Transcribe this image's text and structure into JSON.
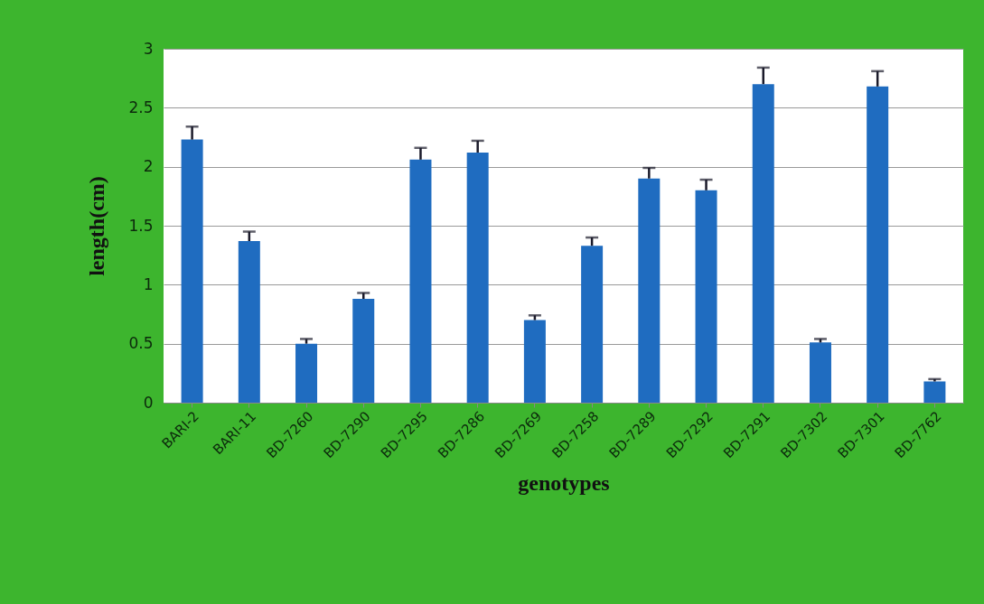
{
  "chart_data": {
    "type": "bar",
    "xlabel": "genotypes",
    "ylabel": "length(cm)",
    "categories": [
      "BARI-2",
      "BARI-11",
      "BD-7260",
      "BD-7290",
      "BD-7295",
      "BD-7286",
      "BD-7269",
      "BD-7258",
      "BD-7289",
      "BD-7292",
      "BD-7291",
      "BD-7302",
      "BD-7301",
      "BD-7762"
    ],
    "values": [
      2.23,
      1.37,
      0.5,
      0.88,
      2.06,
      2.12,
      0.7,
      1.33,
      1.9,
      1.8,
      2.7,
      0.51,
      2.68,
      0.18
    ],
    "errors": [
      [
        2.23,
        2.34
      ],
      [
        1.37,
        1.45
      ],
      [
        0.5,
        0.54
      ],
      [
        0.88,
        0.93
      ],
      [
        2.06,
        2.16
      ],
      [
        2.12,
        2.22
      ],
      [
        0.7,
        0.74
      ],
      [
        1.33,
        1.4
      ],
      [
        1.9,
        1.99
      ],
      [
        1.8,
        1.89
      ],
      [
        2.7,
        2.84
      ],
      [
        0.51,
        0.54
      ],
      [
        2.68,
        2.81
      ],
      [
        0.18,
        0.2
      ]
    ],
    "color": "#1f6cc0",
    "ylim": [
      0,
      3
    ],
    "yticks": [
      0,
      0.5,
      1,
      1.5,
      2,
      2.5,
      3
    ],
    "grid": "y"
  }
}
